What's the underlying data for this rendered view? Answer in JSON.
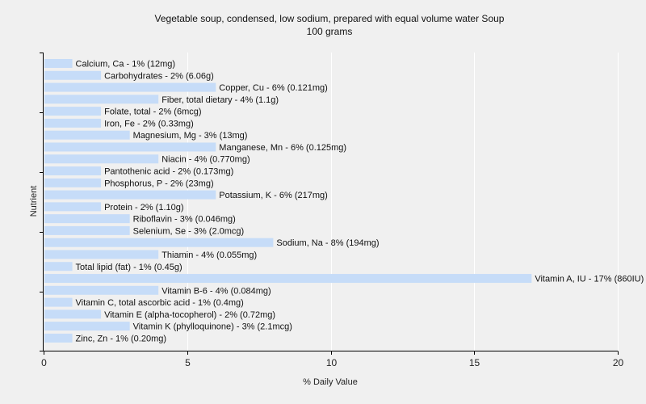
{
  "chart_data": {
    "type": "bar",
    "orientation": "horizontal",
    "title": "Vegetable soup, condensed, low sodium, prepared with equal volume water Soup",
    "subtitle": "100 grams",
    "xlabel": "% Daily Value",
    "ylabel": "Nutrient",
    "xlim": [
      0,
      20
    ],
    "xticks": [
      0,
      5,
      10,
      15,
      20
    ],
    "grid": true,
    "bar_color": "#c6dcf8",
    "categories": [
      "Calcium, Ca",
      "Carbohydrates",
      "Copper, Cu",
      "Fiber, total dietary",
      "Folate, total",
      "Iron, Fe",
      "Magnesium, Mg",
      "Manganese, Mn",
      "Niacin",
      "Pantothenic acid",
      "Phosphorus, P",
      "Potassium, K",
      "Protein",
      "Riboflavin",
      "Selenium, Se",
      "Sodium, Na",
      "Thiamin",
      "Total lipid (fat)",
      "Vitamin A, IU",
      "Vitamin B-6",
      "Vitamin C, total ascorbic acid",
      "Vitamin E (alpha-tocopherol)",
      "Vitamin K (phylloquinone)",
      "Zinc, Zn"
    ],
    "values": [
      1,
      2,
      6,
      4,
      2,
      2,
      3,
      6,
      4,
      2,
      2,
      6,
      2,
      3,
      3,
      8,
      4,
      1,
      17,
      4,
      1,
      2,
      3,
      1
    ],
    "labels": [
      "Calcium, Ca - 1% (12mg)",
      "Carbohydrates - 2% (6.06g)",
      "Copper, Cu - 6% (0.121mg)",
      "Fiber, total dietary - 4% (1.1g)",
      "Folate, total - 2% (6mcg)",
      "Iron, Fe - 2% (0.33mg)",
      "Magnesium, Mg - 3% (13mg)",
      "Manganese, Mn - 6% (0.125mg)",
      "Niacin - 4% (0.770mg)",
      "Pantothenic acid - 2% (0.173mg)",
      "Phosphorus, P - 2% (23mg)",
      "Potassium, K - 6% (217mg)",
      "Protein - 2% (1.10g)",
      "Riboflavin - 3% (0.046mg)",
      "Selenium, Se - 3% (2.0mcg)",
      "Sodium, Na - 8% (194mg)",
      "Thiamin - 4% (0.055mg)",
      "Total lipid (fat) - 1% (0.45g)",
      "Vitamin A, IU - 17% (860IU)",
      "Vitamin B-6 - 4% (0.084mg)",
      "Vitamin C, total ascorbic acid - 1% (0.4mg)",
      "Vitamin E (alpha-tocopherol) - 2% (0.72mg)",
      "Vitamin K (phylloquinone) - 3% (2.1mcg)",
      "Zinc, Zn - 1% (0.20mg)"
    ]
  }
}
